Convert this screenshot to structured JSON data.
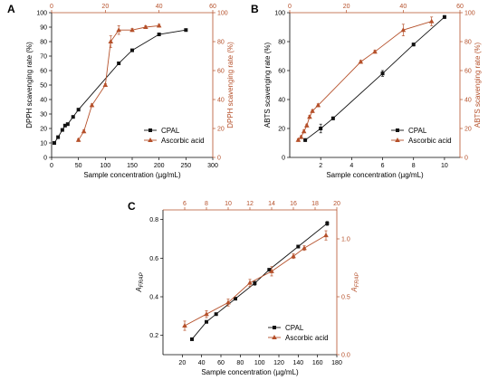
{
  "colors": {
    "cpal": "#111111",
    "aa": "#b5502a",
    "axis": "#000000"
  },
  "chart_data": [
    {
      "type": "line",
      "panel_label": "A",
      "xlabel": "Sample concentration (µg/mL)",
      "ylabel": "DPPH scavenging rate (%)",
      "y2label": "DPPH scavenging rate (%)",
      "xlim": [
        0,
        300
      ],
      "ylim": [
        0,
        100
      ],
      "x2lim": [
        0,
        60
      ],
      "y2lim": [
        0,
        100
      ],
      "xticks": [
        0,
        50,
        100,
        150,
        200,
        250,
        300
      ],
      "yticks": [
        0,
        10,
        20,
        30,
        40,
        50,
        60,
        70,
        80,
        90,
        100
      ],
      "x2ticks": [
        0,
        20,
        40,
        60
      ],
      "y2ticks": [
        0,
        20,
        40,
        60,
        80,
        100
      ],
      "legend_position": "bottom-right",
      "series": [
        {
          "name": "CPAL",
          "axis": "primary",
          "marker": "square",
          "x": [
            5,
            12,
            20,
            25,
            30,
            40,
            50,
            125,
            150,
            200,
            250
          ],
          "y": [
            10,
            14,
            19,
            22,
            23,
            28,
            33,
            65,
            74,
            85,
            88
          ]
        },
        {
          "name": "Ascorbic acid",
          "axis": "secondary",
          "marker": "triangle",
          "x": [
            10,
            12,
            15,
            20,
            22,
            25,
            30,
            35,
            40
          ],
          "y": [
            12,
            18,
            36,
            50,
            80,
            88,
            88,
            90,
            91
          ],
          "err": [
            1,
            1,
            1,
            1,
            4,
            3,
            1,
            1,
            1
          ]
        }
      ]
    },
    {
      "type": "line",
      "panel_label": "B",
      "xlabel": "Sample concentration (µg/mL)",
      "ylabel": "ABTS scavenging rate (%)",
      "y2label": "ABTS scavenging rate (%)",
      "xlim": [
        0,
        11
      ],
      "ylim": [
        0,
        100
      ],
      "x2lim": [
        0,
        60
      ],
      "y2lim": [
        0,
        100
      ],
      "xticks": [
        2,
        4,
        6,
        8,
        10
      ],
      "yticks": [
        0,
        20,
        40,
        60,
        80,
        100
      ],
      "x2ticks": [
        0,
        20,
        40,
        60
      ],
      "y2ticks": [
        0,
        20,
        40,
        60,
        80,
        100
      ],
      "legend_position": "bottom-right",
      "series": [
        {
          "name": "CPAL",
          "axis": "primary",
          "marker": "square",
          "x": [
            1,
            2,
            2.8,
            6,
            8,
            10
          ],
          "y": [
            12,
            20,
            27,
            58,
            78,
            97
          ],
          "err": [
            1,
            3,
            1,
            2,
            1,
            1
          ]
        },
        {
          "name": "Ascorbic acid",
          "axis": "secondary",
          "marker": "triangle",
          "x": [
            3,
            4,
            5,
            6,
            7,
            8,
            10,
            25,
            30,
            40,
            50
          ],
          "y": [
            12,
            14,
            18,
            22,
            28,
            32,
            36,
            66,
            73,
            88,
            94
          ],
          "err": [
            1,
            1,
            1,
            1,
            1,
            1,
            1,
            1,
            1,
            4,
            3
          ]
        }
      ]
    },
    {
      "type": "line",
      "panel_label": "C",
      "xlabel": "Sample concentration (µg/mL)",
      "ylabel": "AFRAP",
      "y2label": "AFRAP",
      "xlim": [
        0,
        180
      ],
      "ylim": [
        0.1,
        0.85
      ],
      "x2lim": [
        4,
        20
      ],
      "y2lim": [
        0,
        1.25
      ],
      "xticks": [
        20,
        40,
        60,
        80,
        100,
        120,
        140,
        160,
        180
      ],
      "yticks": [
        0.2,
        0.4,
        0.6,
        0.8
      ],
      "x2ticks": [
        6,
        8,
        10,
        12,
        14,
        16,
        18,
        20
      ],
      "y2ticks": [
        0.0,
        0.5,
        1.0
      ],
      "legend_position": "bottom-right",
      "series": [
        {
          "name": "CPAL",
          "axis": "primary",
          "marker": "square",
          "x": [
            30,
            45,
            55,
            75,
            95,
            110,
            140,
            170
          ],
          "y": [
            0.18,
            0.27,
            0.31,
            0.39,
            0.47,
            0.54,
            0.66,
            0.78
          ],
          "err": [
            0.005,
            0.005,
            0.005,
            0.005,
            0.01,
            0.005,
            0.005,
            0.01
          ]
        },
        {
          "name": "Ascorbic acid",
          "axis": "secondary",
          "marker": "triangle",
          "x": [
            6,
            8,
            10,
            12,
            14,
            16,
            17,
            19
          ],
          "y": [
            0.25,
            0.35,
            0.45,
            0.62,
            0.72,
            0.85,
            0.92,
            1.03
          ],
          "err": [
            0.04,
            0.03,
            0.03,
            0.03,
            0.04,
            0.02,
            0.02,
            0.04
          ]
        }
      ]
    }
  ]
}
